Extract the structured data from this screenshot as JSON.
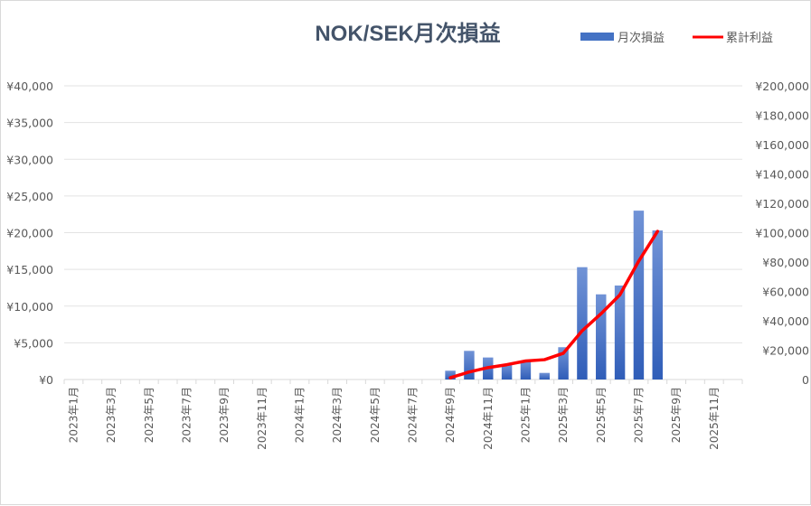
{
  "chart_data": {
    "type": "bar",
    "title": "NOK/SEK月次損益",
    "categories": [
      "2023年1月",
      "2023年2月",
      "2023年3月",
      "2023年4月",
      "2023年5月",
      "2023年6月",
      "2023年7月",
      "2023年8月",
      "2023年9月",
      "2023年10月",
      "2023年11月",
      "2023年12月",
      "2024年1月",
      "2024年2月",
      "2024年3月",
      "2024年4月",
      "2024年5月",
      "2024年6月",
      "2024年7月",
      "2024年8月",
      "2024年9月",
      "2024年10月",
      "2024年11月",
      "2024年12月",
      "2025年1月",
      "2025年2月",
      "2025年3月",
      "2025年4月",
      "2025年5月",
      "2025年6月",
      "2025年7月",
      "2025年8月",
      "2025年9月",
      "2025年10月",
      "2025年11月",
      "2025年12月"
    ],
    "x_tick_labels": [
      "2023年1月",
      "",
      "2023年3月",
      "",
      "2023年5月",
      "",
      "2023年7月",
      "",
      "2023年9月",
      "",
      "2023年11月",
      "",
      "2024年1月",
      "",
      "2024年3月",
      "",
      "2024年5月",
      "",
      "2024年7月",
      "",
      "2024年9月",
      "",
      "2024年11月",
      "",
      "2025年1月",
      "",
      "2025年3月",
      "",
      "2025年5月",
      "",
      "2025年7月",
      "",
      "2025年9月",
      "",
      "2025年11月",
      ""
    ],
    "series": [
      {
        "name": "月次損益",
        "kind": "bar",
        "axis": "left",
        "color": "#4472c4",
        "values": [
          null,
          null,
          null,
          null,
          null,
          null,
          null,
          null,
          null,
          null,
          null,
          null,
          null,
          null,
          null,
          null,
          null,
          null,
          null,
          null,
          1200,
          3900,
          3000,
          2000,
          2500,
          900,
          4400,
          15300,
          11600,
          12800,
          23000,
          20300,
          null,
          null,
          null,
          null
        ]
      },
      {
        "name": "累計利益",
        "kind": "line",
        "axis": "right",
        "color": "#ff0000",
        "values": [
          null,
          null,
          null,
          null,
          null,
          null,
          null,
          null,
          null,
          null,
          null,
          null,
          null,
          null,
          null,
          null,
          null,
          null,
          null,
          null,
          1200,
          5100,
          8100,
          10100,
          12600,
          13500,
          17900,
          33200,
          44800,
          57600,
          80600,
          100900,
          null,
          null,
          null,
          null
        ]
      }
    ],
    "y_left": {
      "lim": [
        0,
        40000
      ],
      "ticks": [
        "¥0",
        "¥5,000",
        "¥10,000",
        "¥15,000",
        "¥20,000",
        "¥25,000",
        "¥30,000",
        "¥35,000",
        "¥40,000"
      ]
    },
    "y_right": {
      "lim": [
        0,
        200000
      ],
      "ticks": [
        "0",
        "¥20,000",
        "¥40,000",
        "¥60,000",
        "¥80,000",
        "¥100,000",
        "¥120,000",
        "¥140,000",
        "¥160,000",
        "¥180,000",
        "¥200,000"
      ]
    },
    "grid": true,
    "legend_position": "top-right"
  }
}
